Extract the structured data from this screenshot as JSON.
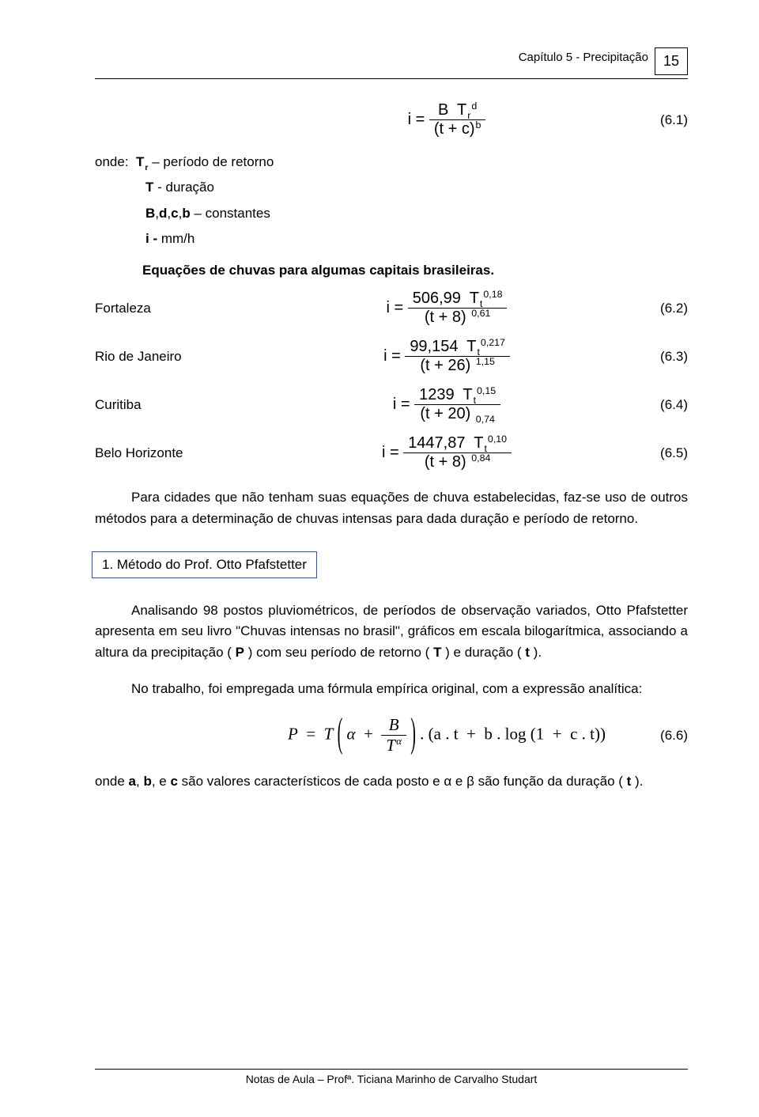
{
  "header": {
    "chapter": "Capítulo 5 - Precipitação",
    "page": "15"
  },
  "eq1": {
    "lhs": "i =",
    "num_B": "B",
    "num_T": "T",
    "num_r": "r",
    "num_d": "d",
    "den_open": "(",
    "den_t": "t",
    "den_plus": "+",
    "den_c": "c",
    "den_close": ")",
    "den_b": "b",
    "num": "(6.1)"
  },
  "onde": {
    "label": "onde:",
    "l1a": "T",
    "l1b": "r",
    "l1c": " – período de retorno",
    "l2a": "T",
    "l2b": "  - duração",
    "l3a": "B",
    "l3b": ",",
    "l3c": "d",
    "l3d": ",",
    "l3e": "c",
    "l3f": ",",
    "l3g": "b",
    "l3h": " – constantes",
    "l4a": "i - ",
    "l4b": " mm/h"
  },
  "subhead": "Equações de chuvas para algumas capitais brasileiras.",
  "cities": {
    "fortaleza": {
      "label": "Fortaleza",
      "lhs": "i =",
      "coef": "506,99",
      "T": "T",
      "t": "t",
      "exp_t": "0,18",
      "den_base": "(t + 8)",
      "den_exp": "0,61",
      "num": "(6.2)"
    },
    "rio": {
      "label": "Rio de Janeiro",
      "lhs": "i =",
      "coef": "99,154",
      "T": "T",
      "t": "t",
      "exp_t": "0,217",
      "den_base": "(t + 26)",
      "den_exp": "1,15",
      "num": "(6.3)"
    },
    "curitiba": {
      "label": "Curitiba",
      "lhs": "i =",
      "coef": "1239",
      "T": "T",
      "t": "t",
      "exp_t": "0,15",
      "den_base": "(t + 20)",
      "den_exp": "0,74",
      "num": "(6.4)"
    },
    "bh": {
      "label": "Belo Horizonte",
      "lhs": "i =",
      "coef": "1447,87",
      "T": "T",
      "t": "t",
      "exp_t": "0,10",
      "den_base": "(t + 8)",
      "den_exp": "0,84",
      "num": "(6.5)"
    }
  },
  "para1": "Para cidades que não tenham suas equações de chuva estabelecidas, faz-se uso de outros métodos para a determinação de chuvas intensas para dada duração e período de retorno.",
  "method": "1. Método do Prof. Otto Pfafstetter",
  "para2a": "Analisando 98 postos pluviométricos, de períodos de observação variados, Otto Pfafstetter apresenta em seu livro \"Chuvas intensas no brasil\", gráficos em escala bilogarítmica, associando a altura da precipitação ( ",
  "para2b": "P",
  "para2c": " ) com seu período de retorno ( ",
  "para2d": "T",
  "para2e": " ) e duração ( ",
  "para2f": "t",
  "para2g": " ).",
  "para3": "No trabalho, foi empregada uma fórmula empírica original, com a expressão analítica:",
  "eq6": {
    "P": "P",
    "eq": "=",
    "T": "T",
    "alpha": "α",
    "plus": "+",
    "B": "B",
    "dot": ".",
    "a": "a",
    "tt": "t",
    "b": "b",
    "log": "log",
    "one": "1",
    "c": "c",
    "num": "(6.6)"
  },
  "para4a": "onde ",
  "para4_a": "a",
  "para4_b": "b",
  "para4_c": "c",
  "para4b": ",  e  são valores característicos de cada posto e α e β são função da duração ( ",
  "para4_t": "t",
  "para4c": " ).",
  "para4_full_pre": "onde ",
  "para4_mid1": ", ",
  "para4_mid2": ", e ",
  "para4_mid3": " são valores característicos de cada posto e α e β são função da duração ( ",
  "para4_end": " ).",
  "footer": "Notas de Aula – Profª. Ticiana Marinho de Carvalho Studart"
}
